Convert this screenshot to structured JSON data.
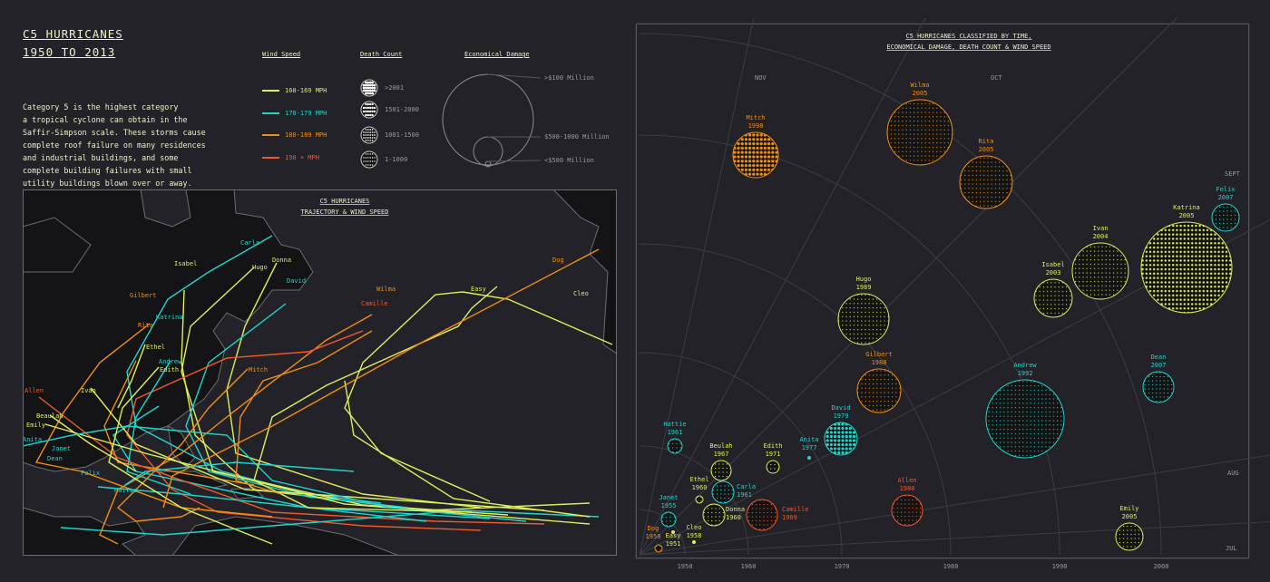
{
  "header": {
    "title_line1": "C5 HURRICANES",
    "title_line2": "1950 TO 2013"
  },
  "description": [
    "Category 5 is the highest category",
    "a tropical cyclone can obtain in the",
    "Saffir-Simpson scale. These storms cause",
    "complete roof failure on many residences",
    "and industrial buildings, and some",
    "complete building failures with small",
    "utility buildings blown over or away."
  ],
  "colors": {
    "wind_160": "#dfee5e",
    "wind_170": "#1fd6cd",
    "wind_180": "#f28f14",
    "wind_190": "#f2582a",
    "background": "#222228",
    "land": "#141416"
  },
  "legend": {
    "wind_title": "Wind Speed",
    "wind": [
      {
        "label": "160-169 MPH",
        "color": "#dfee5e"
      },
      {
        "label": "170-179 MPH",
        "color": "#1fd6cd"
      },
      {
        "label": "180-189 MPH",
        "color": "#f28f14"
      },
      {
        "label": "190 + MPH",
        "color": "#f2582a"
      }
    ],
    "death_title": "Death Count",
    "death": [
      ">2001",
      "1501-2000",
      "1001-1500",
      "1-1000"
    ],
    "damage_title": "Economical Damage",
    "damage": [
      ">$100 Million",
      "$500-1000 Million",
      "<$500 Million"
    ]
  },
  "map": {
    "title_line1": "C5 HURRICANES",
    "title_line2": "TRAJECTORY & WIND SPEED",
    "labels": [
      "Carla",
      "Isabel",
      "Hugo",
      "Donna",
      "David",
      "Wilma",
      "Camille",
      "Gilbert",
      "Katrina",
      "Rita",
      "Ethel",
      "Andrew",
      "Edith",
      "Mitch",
      "Allen",
      "Ivan",
      "Beaulah",
      "Emily",
      "Anita",
      "Janet",
      "Dean",
      "Felix",
      "Hattie",
      "Easy",
      "Dog",
      "Cleo"
    ]
  },
  "chart_data": {
    "type": "scatter",
    "title": "C5 HURRICANES CLASSIFIED BY TIME, ECONOMICAL DAMAGE, DEATH COUNT & WIND SPEED",
    "title_line1": "C5 HURRICANES CLASSIFIED BY TIME,",
    "title_line2": "ECONOMICAL DAMAGE, DEATH COUNT & WIND SPEED",
    "radial_axis": {
      "label": "year",
      "ticks": [
        "1950",
        "1960",
        "1970",
        "1980",
        "1990",
        "2000"
      ]
    },
    "angular_axis": {
      "label": "month",
      "ticks": [
        "JUL",
        "AUG",
        "SEPT",
        "OCT",
        "NOV"
      ]
    },
    "points": [
      {
        "name": "Mitch",
        "year": "1998",
        "wind": "180-189 MPH",
        "deaths": ">2001"
      },
      {
        "name": "Wilma",
        "year": "2005",
        "wind": "180-189 MPH",
        "deaths": "1-1000"
      },
      {
        "name": "Rita",
        "year": "2005",
        "wind": "180-189 MPH",
        "deaths": "1-1000"
      },
      {
        "name": "Felix",
        "year": "2007",
        "wind": "170-179 MPH",
        "deaths": "1-1000"
      },
      {
        "name": "Katrina",
        "year": "2005",
        "wind": "160-169 MPH",
        "deaths": "1501-2000"
      },
      {
        "name": "Ivan",
        "year": "2004",
        "wind": "160-169 MPH",
        "deaths": "1-1000"
      },
      {
        "name": "Isabel",
        "year": "2003",
        "wind": "160-169 MPH",
        "deaths": "1-1000"
      },
      {
        "name": "Hugo",
        "year": "1989",
        "wind": "160-169 MPH",
        "deaths": "1-1000"
      },
      {
        "name": "Gilbert",
        "year": "1988",
        "wind": "180-189 MPH",
        "deaths": "1-1000"
      },
      {
        "name": "Andrew",
        "year": "1992",
        "wind": "170-179 MPH",
        "deaths": "1-1000"
      },
      {
        "name": "Dean",
        "year": "2007",
        "wind": "170-179 MPH",
        "deaths": "1-1000"
      },
      {
        "name": "David",
        "year": "1979",
        "wind": "170-179 MPH",
        "deaths": ">2001"
      },
      {
        "name": "Hattie",
        "year": "1961",
        "wind": "170-179 MPH",
        "deaths": "1-1000"
      },
      {
        "name": "Beulah",
        "year": "1967",
        "wind": "160-169 MPH",
        "deaths": "1-1000"
      },
      {
        "name": "Edith",
        "year": "1971",
        "wind": "160-169 MPH",
        "deaths": "1-1000"
      },
      {
        "name": "Anita",
        "year": "1977",
        "wind": "170-179 MPH",
        "deaths": "1-1000"
      },
      {
        "name": "Ethel",
        "year": "1960",
        "wind": "160-169 MPH",
        "deaths": "1-1000"
      },
      {
        "name": "Carla",
        "year": "1961",
        "wind": "170-179 MPH",
        "deaths": "1-1000"
      },
      {
        "name": "Donna",
        "year": "1960",
        "wind": "160-169 MPH",
        "deaths": "1-1000"
      },
      {
        "name": "Camille",
        "year": "1969",
        "wind": "190 + MPH",
        "deaths": "1-1000"
      },
      {
        "name": "Allen",
        "year": "1980",
        "wind": "190 + MPH",
        "deaths": "1-1000"
      },
      {
        "name": "Emily",
        "year": "2005",
        "wind": "160-169 MPH",
        "deaths": "1-1000"
      },
      {
        "name": "Janet",
        "year": "1955",
        "wind": "170-179 MPH",
        "deaths": "1-1000"
      },
      {
        "name": "Dog",
        "year": "1950",
        "wind": "180-189 MPH",
        "deaths": "1-1000"
      },
      {
        "name": "Easy",
        "year": "1951",
        "wind": "160-169 MPH",
        "deaths": "1-1000"
      },
      {
        "name": "Cleo",
        "year": "1958",
        "wind": "160-169 MPH",
        "deaths": "1-1000"
      }
    ]
  }
}
